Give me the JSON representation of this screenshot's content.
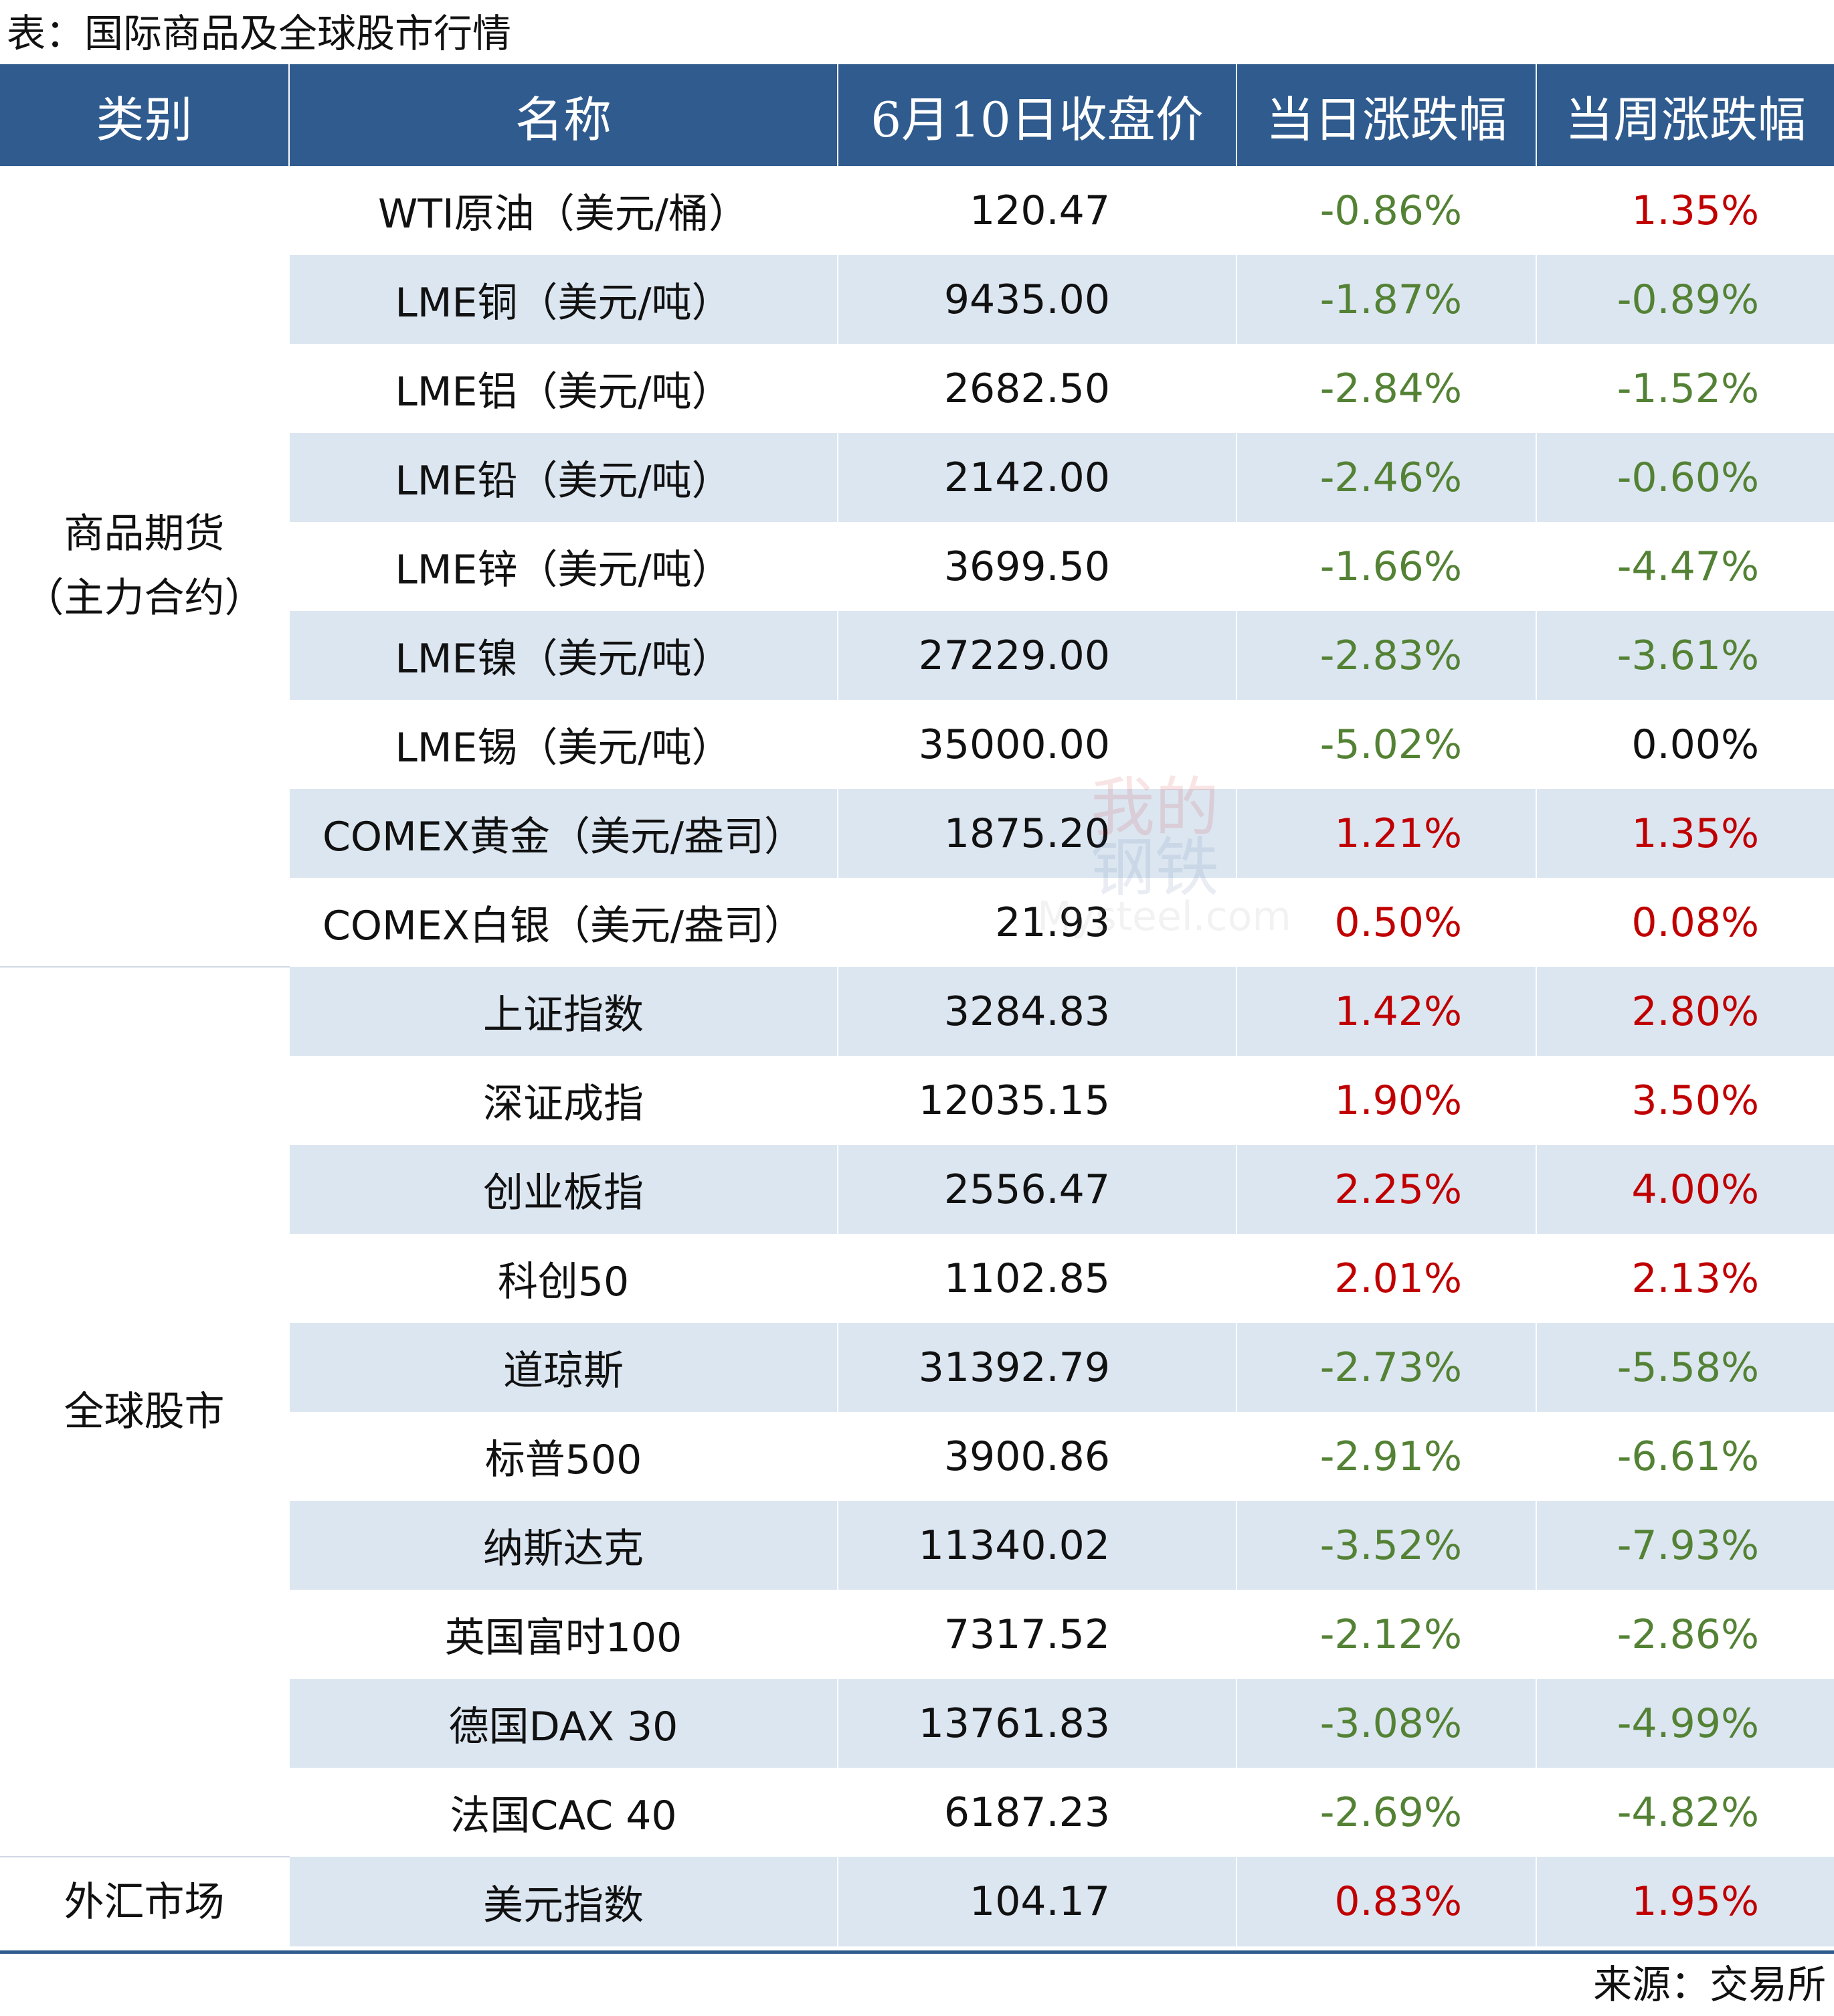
{
  "title": "表：国际商品及全球股市行情",
  "headers": [
    "类别",
    "名称",
    "6月10日收盘价",
    "当日涨跌幅",
    "当周涨跌幅"
  ],
  "groups": [
    {
      "category_line1": "商品期货",
      "category_line2": "（主力合约）",
      "rows": [
        {
          "name": "WTI原油（美元/桶）",
          "price": "120.47",
          "day": "-0.86%",
          "week": "1.35%",
          "day_color": "green",
          "week_color": "red"
        },
        {
          "name": "LME铜（美元/吨）",
          "price": "9435.00",
          "day": "-1.87%",
          "week": "-0.89%",
          "day_color": "green",
          "week_color": "green"
        },
        {
          "name": "LME铝（美元/吨）",
          "price": "2682.50",
          "day": "-2.84%",
          "week": "-1.52%",
          "day_color": "green",
          "week_color": "green"
        },
        {
          "name": "LME铅（美元/吨）",
          "price": "2142.00",
          "day": "-2.46%",
          "week": "-0.60%",
          "day_color": "green",
          "week_color": "green"
        },
        {
          "name": "LME锌（美元/吨）",
          "price": "3699.50",
          "day": "-1.66%",
          "week": "-4.47%",
          "day_color": "green",
          "week_color": "green"
        },
        {
          "name": "LME镍（美元/吨）",
          "price": "27229.00",
          "day": "-2.83%",
          "week": "-3.61%",
          "day_color": "green",
          "week_color": "green"
        },
        {
          "name": "LME锡（美元/吨）",
          "price": "35000.00",
          "day": "-5.02%",
          "week": "0.00%",
          "day_color": "green",
          "week_color": "black"
        },
        {
          "name": "COMEX黄金（美元/盎司）",
          "price": "1875.20",
          "day": "1.21%",
          "week": "1.35%",
          "day_color": "red",
          "week_color": "red"
        },
        {
          "name": "COMEX白银（美元/盎司）",
          "price": "21.93",
          "day": "0.50%",
          "week": "0.08%",
          "day_color": "red",
          "week_color": "red"
        }
      ]
    },
    {
      "category_line1": "全球股市",
      "category_line2": "",
      "rows": [
        {
          "name": "上证指数",
          "price": "3284.83",
          "day": "1.42%",
          "week": "2.80%",
          "day_color": "red",
          "week_color": "red"
        },
        {
          "name": "深证成指",
          "price": "12035.15",
          "day": "1.90%",
          "week": "3.50%",
          "day_color": "red",
          "week_color": "red"
        },
        {
          "name": "创业板指",
          "price": "2556.47",
          "day": "2.25%",
          "week": "4.00%",
          "day_color": "red",
          "week_color": "red"
        },
        {
          "name": "科创50",
          "price": "1102.85",
          "day": "2.01%",
          "week": "2.13%",
          "day_color": "red",
          "week_color": "red"
        },
        {
          "name": "道琼斯",
          "price": "31392.79",
          "day": "-2.73%",
          "week": "-5.58%",
          "day_color": "green",
          "week_color": "green"
        },
        {
          "name": "标普500",
          "price": "3900.86",
          "day": "-2.91%",
          "week": "-6.61%",
          "day_color": "green",
          "week_color": "green"
        },
        {
          "name": "纳斯达克",
          "price": "11340.02",
          "day": "-3.52%",
          "week": "-7.93%",
          "day_color": "green",
          "week_color": "green"
        },
        {
          "name": "英国富时100",
          "price": "7317.52",
          "day": "-2.12%",
          "week": "-2.86%",
          "day_color": "green",
          "week_color": "green"
        },
        {
          "name": "德国DAX 30",
          "price": "13761.83",
          "day": "-3.08%",
          "week": "-4.99%",
          "day_color": "green",
          "week_color": "green"
        },
        {
          "name": "法国CAC 40",
          "price": "6187.23",
          "day": "-2.69%",
          "week": "-4.82%",
          "day_color": "green",
          "week_color": "green"
        }
      ]
    },
    {
      "category_line1": "外汇市场",
      "category_line2": "",
      "rows": [
        {
          "name": "美元指数",
          "price": "104.17",
          "day": "0.83%",
          "week": "1.95%",
          "day_color": "red",
          "week_color": "red"
        }
      ]
    }
  ],
  "source": "来源：交易所",
  "watermark": {
    "line1": "我的",
    "line2": "钢铁",
    "line3": "Mysteel.com"
  },
  "colors": {
    "header_bg": "#2f5b8e",
    "stripe": "#dce6f1",
    "up": "#c00000",
    "down": "#548235"
  }
}
